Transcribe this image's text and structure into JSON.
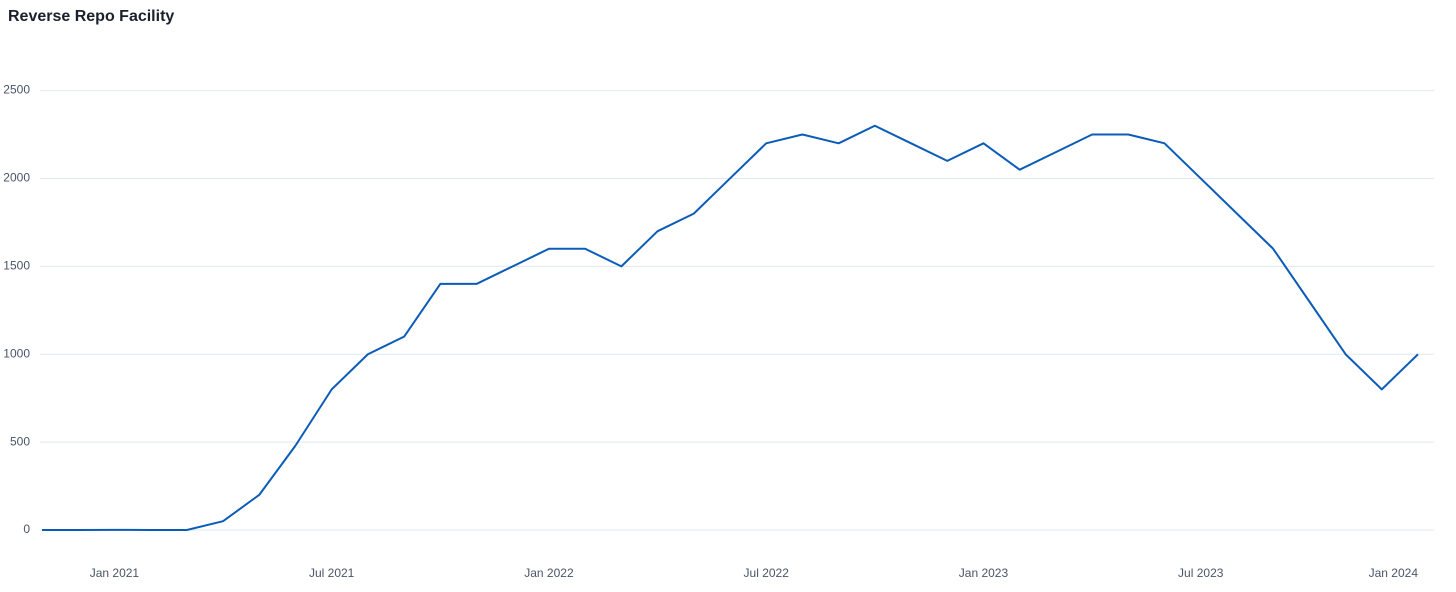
{
  "chart_data": {
    "type": "line",
    "title": "Reverse Repo Facility",
    "x": [
      "2020-11",
      "2020-12",
      "2021-01",
      "2021-02",
      "2021-03",
      "2021-04",
      "2021-05",
      "2021-06",
      "2021-07",
      "2021-08",
      "2021-09",
      "2021-10",
      "2021-11",
      "2021-12",
      "2022-01",
      "2022-02",
      "2022-03",
      "2022-04",
      "2022-05",
      "2022-06",
      "2022-07",
      "2022-08",
      "2022-09",
      "2022-10",
      "2022-11",
      "2022-12",
      "2023-01",
      "2023-02",
      "2023-03",
      "2023-04",
      "2023-05",
      "2023-06",
      "2023-07",
      "2023-08",
      "2023-09",
      "2023-10",
      "2023-11",
      "2023-12",
      "2024-01"
    ],
    "series": [
      {
        "name": "Reverse Repo Facility",
        "color": "#0b5cb8",
        "values": [
          0,
          0,
          1,
          0,
          0,
          50,
          200,
          480,
          800,
          1000,
          1100,
          1400,
          1400,
          1500,
          1600,
          1600,
          1500,
          1700,
          1800,
          2000,
          2200,
          2250,
          2200,
          2300,
          2200,
          2100,
          2200,
          2050,
          2150,
          2250,
          2250,
          2200,
          2000,
          1800,
          1600,
          1300,
          1000,
          800,
          1000
        ]
      }
    ],
    "xlim": [
      "2020-11",
      "2024-01"
    ],
    "xticks": [
      {
        "value": "2021-01",
        "label": "Jan 2021"
      },
      {
        "value": "2021-07",
        "label": "Jul 2021"
      },
      {
        "value": "2022-01",
        "label": "Jan 2022"
      },
      {
        "value": "2022-07",
        "label": "Jul 2022"
      },
      {
        "value": "2023-01",
        "label": "Jan 2023"
      },
      {
        "value": "2023-07",
        "label": "Jul 2023"
      },
      {
        "value": "2024-01",
        "label": "Jan 2024"
      }
    ],
    "ylim": [
      0,
      2600
    ],
    "yticks": [
      0,
      500,
      1000,
      1500,
      2000,
      2500
    ],
    "grid": true
  }
}
